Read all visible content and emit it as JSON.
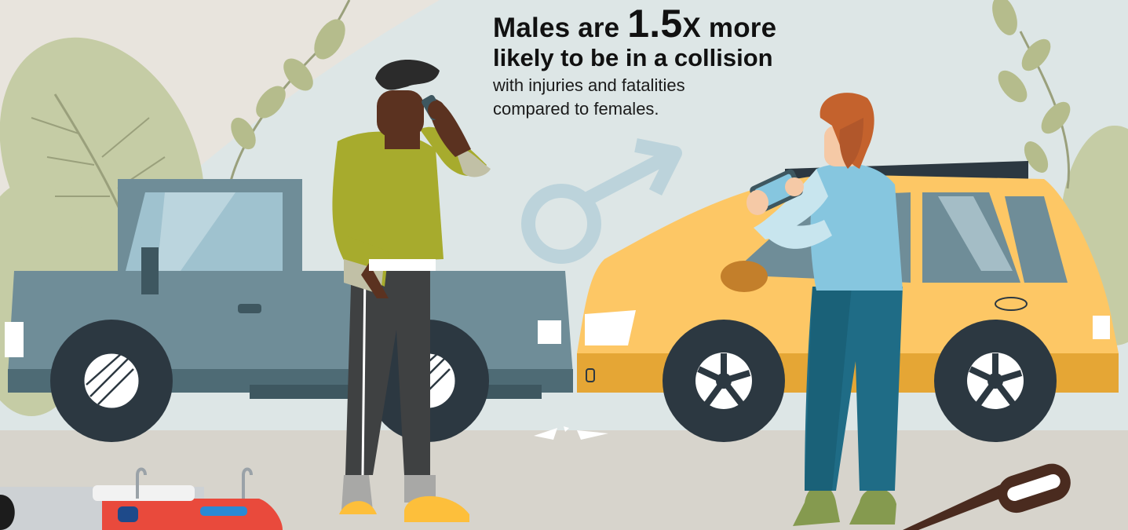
{
  "headline": {
    "prefix": "Males are",
    "multiplier": "1.5",
    "suffix": "X more",
    "line2": "likely to be in a collision"
  },
  "subtext": {
    "line1": "with injuries and fatalities",
    "line2": "compared to females."
  },
  "colors": {
    "sky": "#dde6e6",
    "pickup_truck": "#6f8d98",
    "suv": "#fdc765",
    "shirt_green": "#a7ab2d",
    "jacket_blue": "#86c6df",
    "jeans_teal": "#1f6c86",
    "male_symbol": "#b9d2da",
    "foliage": "#c5cca5",
    "road": "#d7d4cc"
  }
}
